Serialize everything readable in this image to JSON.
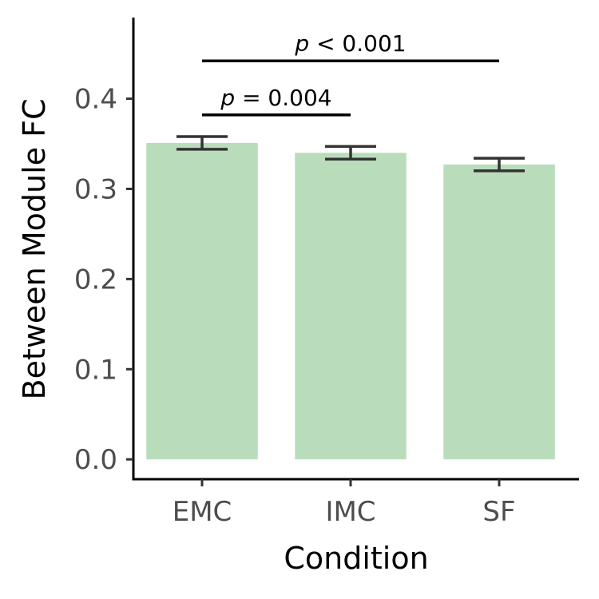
{
  "chart_data": {
    "type": "bar",
    "categories": [
      "EMC",
      "IMC",
      "SF"
    ],
    "values": [
      0.351,
      0.34,
      0.327
    ],
    "error": [
      {
        "lower": 0.344,
        "upper": 0.358
      },
      {
        "lower": 0.333,
        "upper": 0.347
      },
      {
        "lower": 0.32,
        "upper": 0.334
      }
    ],
    "xlabel": "Condition",
    "ylabel": "Between Module FC",
    "ylim": [
      -0.022,
      0.49
    ],
    "yticks": [
      0.0,
      0.1,
      0.2,
      0.3,
      0.4
    ],
    "ytick_labels": [
      "0.0",
      "0.1",
      "0.2",
      "0.3",
      "0.4"
    ],
    "grid": false,
    "significance": [
      {
        "from": "EMC",
        "to": "IMC",
        "y": 0.382,
        "p_symbol": "p",
        "p_text": " = 0.004"
      },
      {
        "from": "EMC",
        "to": "SF",
        "y": 0.442,
        "p_symbol": "p",
        "p_text": " < 0.001"
      }
    ],
    "colors": {
      "bar": "#b9ddbb",
      "error": "#333333",
      "axis": "#000000"
    }
  }
}
